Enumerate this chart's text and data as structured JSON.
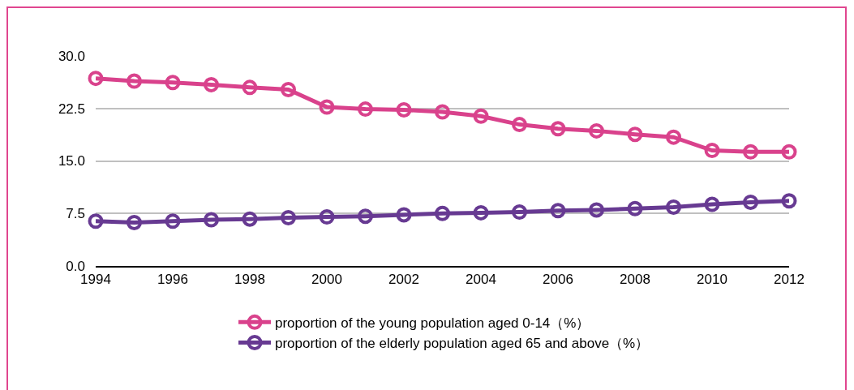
{
  "chart_data": {
    "type": "line",
    "x": [
      1994,
      1995,
      1996,
      1997,
      1998,
      1999,
      2000,
      2001,
      2002,
      2003,
      2004,
      2005,
      2006,
      2007,
      2008,
      2009,
      2010,
      2011,
      2012
    ],
    "series": [
      {
        "name": "proportion of the young population aged 0-14（%）",
        "color": "#d9428c",
        "values": [
          26.8,
          26.4,
          26.2,
          25.9,
          25.5,
          25.2,
          22.7,
          22.4,
          22.3,
          22.0,
          21.4,
          20.2,
          19.6,
          19.3,
          18.8,
          18.4,
          16.5,
          16.3,
          16.3
        ]
      },
      {
        "name": "proportion of the elderly population aged 65 and above（%）",
        "color": "#673a92",
        "values": [
          6.4,
          6.2,
          6.4,
          6.6,
          6.7,
          6.9,
          7.0,
          7.1,
          7.3,
          7.5,
          7.6,
          7.7,
          7.9,
          8.0,
          8.2,
          8.4,
          8.8,
          9.1,
          9.3
        ]
      }
    ],
    "xlim": [
      1994,
      2012
    ],
    "xticks": [
      1994,
      1996,
      1998,
      2000,
      2002,
      2004,
      2006,
      2008,
      2010,
      2012
    ],
    "ylim": [
      0,
      30
    ],
    "yticks": [
      {
        "value": 0,
        "label": "0.0"
      },
      {
        "value": 7.5,
        "label": "7.5"
      },
      {
        "value": 15,
        "label": "15.0"
      },
      {
        "value": 22.5,
        "label": "22.5"
      },
      {
        "value": 30,
        "label": "30.0"
      }
    ],
    "grid": "y",
    "legend": "bottom",
    "marker": "circle",
    "line_style": "solid"
  }
}
